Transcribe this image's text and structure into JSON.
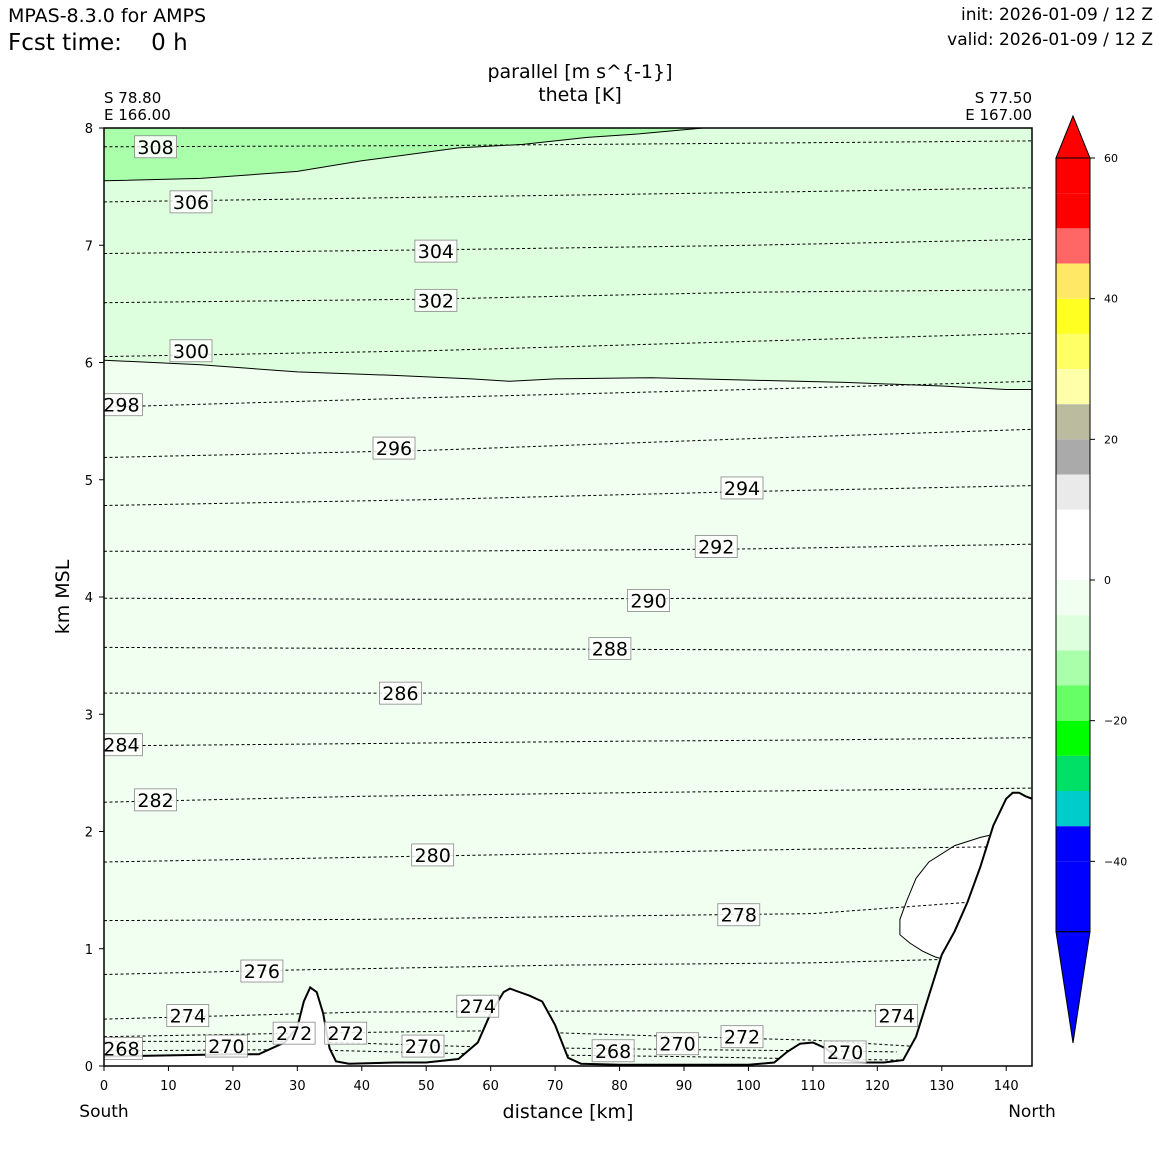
{
  "header": {
    "model": "MPAS-8.3.0 for AMPS",
    "fcst_time": "Fcst time:    0 h",
    "init": "init: 2026-01-09 / 12 Z",
    "valid": "valid: 2026-01-09 / 12 Z"
  },
  "chart_data": {
    "type": "contour",
    "title": "parallel [m s^{-1}]",
    "subtitle": "theta [K]",
    "xlabel": "distance [km]",
    "ylabel": "km MSL",
    "xlim": [
      0,
      144
    ],
    "ylim": [
      0,
      8
    ],
    "x_ticks": [
      0,
      10,
      20,
      30,
      40,
      50,
      60,
      70,
      80,
      90,
      100,
      110,
      120,
      130,
      140
    ],
    "y_ticks": [
      0,
      1,
      2,
      3,
      4,
      5,
      6,
      7,
      8
    ],
    "start": {
      "lat": "S 78.80",
      "lon": "E 166.00",
      "side": "South"
    },
    "end": {
      "lat": "S 77.50",
      "lon": "E 167.00",
      "side": "North"
    },
    "colorbar": {
      "levels": [
        -60,
        -55,
        -50,
        -45,
        -40,
        -35,
        -30,
        -25,
        -20,
        -15,
        -10,
        -5,
        0,
        5,
        10,
        15,
        20,
        25,
        30,
        35,
        40,
        45,
        50,
        55,
        60
      ],
      "tick_labels": [
        -40,
        -20,
        0,
        20,
        40,
        60
      ],
      "colors": [
        "#0000ff",
        "#0000ff",
        "#0000ff",
        "#00cccc",
        "#00e066",
        "#00ff00",
        "#66ff66",
        "#aaffaa",
        "#ddffdd",
        "#f0fff0",
        "#ffffff",
        "#ffffff",
        "#eaeaea",
        "#aaaaaa",
        "#bbbba0",
        "#ffffaa",
        "#ffff66",
        "#ffff22",
        "#ffe866",
        "#ff6666",
        "#ff0000",
        "#ff0000"
      ],
      "extend": "both"
    },
    "wind_regions": [
      {
        "range": "-15 to -20",
        "color": "#aaffaa",
        "boundary": [
          [
            0,
            7.55
          ],
          [
            15,
            7.57
          ],
          [
            30,
            7.63
          ],
          [
            40,
            7.72
          ],
          [
            55,
            7.83
          ],
          [
            65,
            7.86
          ],
          [
            75,
            7.92
          ],
          [
            83,
            7.95
          ],
          [
            93,
            8.0
          ]
        ]
      },
      {
        "range": "-10 to -15",
        "color": "#ddffdd",
        "boundary": [
          [
            0,
            6.02
          ],
          [
            15,
            5.98
          ],
          [
            30,
            5.92
          ],
          [
            45,
            5.89
          ],
          [
            57,
            5.86
          ],
          [
            63,
            5.84
          ],
          [
            70,
            5.86
          ],
          [
            85,
            5.87
          ],
          [
            100,
            5.85
          ],
          [
            115,
            5.83
          ],
          [
            130,
            5.8
          ],
          [
            140,
            5.77
          ],
          [
            144,
            5.77
          ]
        ]
      },
      {
        "range": "-5 to -10",
        "color": "#f0fff0"
      },
      {
        "range": "0 to -5",
        "color": "#ffffff",
        "location": "x 122-140 km, z 0.9-2.0 km"
      }
    ],
    "terrain": [
      [
        0,
        0.08
      ],
      [
        10,
        0.09
      ],
      [
        20,
        0.1
      ],
      [
        24,
        0.1
      ],
      [
        28,
        0.2
      ],
      [
        30,
        0.33
      ],
      [
        31,
        0.55
      ],
      [
        32,
        0.67
      ],
      [
        33,
        0.63
      ],
      [
        34,
        0.45
      ],
      [
        35,
        0.15
      ],
      [
        36,
        0.04
      ],
      [
        38,
        0.02
      ],
      [
        45,
        0.03
      ],
      [
        50,
        0.03
      ],
      [
        55,
        0.06
      ],
      [
        58,
        0.2
      ],
      [
        60,
        0.45
      ],
      [
        62,
        0.63
      ],
      [
        63,
        0.66
      ],
      [
        64,
        0.64
      ],
      [
        66,
        0.6
      ],
      [
        68,
        0.55
      ],
      [
        70,
        0.35
      ],
      [
        72,
        0.07
      ],
      [
        74,
        0.02
      ],
      [
        80,
        0.01
      ],
      [
        90,
        0.01
      ],
      [
        100,
        0.01
      ],
      [
        104,
        0.03
      ],
      [
        106,
        0.12
      ],
      [
        108,
        0.19
      ],
      [
        110,
        0.2
      ],
      [
        112,
        0.15
      ],
      [
        114,
        0.06
      ],
      [
        118,
        0.03
      ],
      [
        121,
        0.03
      ],
      [
        124,
        0.05
      ],
      [
        126,
        0.25
      ],
      [
        128,
        0.6
      ],
      [
        130,
        0.95
      ],
      [
        132,
        1.15
      ],
      [
        134,
        1.4
      ],
      [
        136,
        1.7
      ],
      [
        138,
        2.05
      ],
      [
        140,
        2.28
      ],
      [
        141,
        2.33
      ],
      [
        142,
        2.33
      ],
      [
        143,
        2.3
      ],
      [
        144,
        2.28
      ]
    ],
    "theta_contours": [
      {
        "level": 268,
        "points": [
          [
            0,
            0.13
          ],
          [
            30,
            0.14
          ],
          [
            60,
            0.1
          ],
          [
            90,
            0.08
          ],
          [
            110,
            0.06
          ],
          [
            124,
            0.05
          ]
        ]
      },
      {
        "level": 270,
        "points": [
          [
            0,
            0.21
          ],
          [
            30,
            0.21
          ],
          [
            60,
            0.16
          ],
          [
            90,
            0.14
          ],
          [
            110,
            0.13
          ],
          [
            123,
            0.12
          ]
        ]
      },
      {
        "level": 272,
        "points": [
          [
            0,
            0.25
          ],
          [
            30,
            0.28
          ],
          [
            60,
            0.3
          ],
          [
            90,
            0.25
          ],
          [
            110,
            0.22
          ],
          [
            125,
            0.17
          ]
        ]
      },
      {
        "level": 274,
        "points": [
          [
            0,
            0.4
          ],
          [
            40,
            0.46
          ],
          [
            80,
            0.47
          ],
          [
            110,
            0.47
          ],
          [
            125,
            0.47
          ]
        ]
      },
      {
        "level": 276,
        "points": [
          [
            0,
            0.78
          ],
          [
            30,
            0.82
          ],
          [
            70,
            0.86
          ],
          [
            110,
            0.88
          ],
          [
            131,
            0.91
          ]
        ]
      },
      {
        "level": 278,
        "points": [
          [
            0,
            1.24
          ],
          [
            40,
            1.25
          ],
          [
            80,
            1.28
          ],
          [
            110,
            1.3
          ],
          [
            135,
            1.4
          ]
        ]
      },
      {
        "level": 280,
        "points": [
          [
            0,
            1.74
          ],
          [
            40,
            1.78
          ],
          [
            80,
            1.82
          ],
          [
            110,
            1.85
          ],
          [
            140,
            1.87
          ]
        ]
      },
      {
        "level": 282,
        "points": [
          [
            0,
            2.25
          ],
          [
            40,
            2.3
          ],
          [
            80,
            2.33
          ],
          [
            110,
            2.35
          ],
          [
            144,
            2.37
          ]
        ]
      },
      {
        "level": 284,
        "points": [
          [
            0,
            2.73
          ],
          [
            40,
            2.75
          ],
          [
            80,
            2.77
          ],
          [
            110,
            2.78
          ],
          [
            144,
            2.8
          ]
        ]
      },
      {
        "level": 286,
        "points": [
          [
            0,
            3.18
          ],
          [
            50,
            3.18
          ],
          [
            100,
            3.18
          ],
          [
            144,
            3.18
          ]
        ]
      },
      {
        "level": 288,
        "points": [
          [
            0,
            3.57
          ],
          [
            50,
            3.56
          ],
          [
            100,
            3.55
          ],
          [
            144,
            3.55
          ]
        ]
      },
      {
        "level": 290,
        "points": [
          [
            0,
            3.99
          ],
          [
            50,
            3.98
          ],
          [
            100,
            3.99
          ],
          [
            144,
            3.99
          ]
        ]
      },
      {
        "level": 292,
        "points": [
          [
            0,
            4.39
          ],
          [
            50,
            4.39
          ],
          [
            100,
            4.41
          ],
          [
            144,
            4.45
          ]
        ]
      },
      {
        "level": 294,
        "points": [
          [
            0,
            4.78
          ],
          [
            50,
            4.83
          ],
          [
            100,
            4.9
          ],
          [
            144,
            4.95
          ]
        ]
      },
      {
        "level": 296,
        "points": [
          [
            0,
            5.19
          ],
          [
            50,
            5.25
          ],
          [
            100,
            5.35
          ],
          [
            144,
            5.43
          ]
        ]
      },
      {
        "level": 298,
        "points": [
          [
            0,
            5.62
          ],
          [
            50,
            5.7
          ],
          [
            100,
            5.77
          ],
          [
            144,
            5.84
          ]
        ]
      },
      {
        "level": 300,
        "points": [
          [
            0,
            6.05
          ],
          [
            50,
            6.1
          ],
          [
            100,
            6.18
          ],
          [
            144,
            6.25
          ]
        ]
      },
      {
        "level": 302,
        "points": [
          [
            0,
            6.51
          ],
          [
            50,
            6.54
          ],
          [
            100,
            6.6
          ],
          [
            144,
            6.62
          ]
        ]
      },
      {
        "level": 304,
        "points": [
          [
            0,
            6.93
          ],
          [
            50,
            6.96
          ],
          [
            100,
            7.0
          ],
          [
            144,
            7.05
          ]
        ]
      },
      {
        "level": 306,
        "points": [
          [
            0,
            7.37
          ],
          [
            50,
            7.41
          ],
          [
            100,
            7.45
          ],
          [
            144,
            7.49
          ]
        ]
      },
      {
        "level": 308,
        "points": [
          [
            0,
            7.84
          ],
          [
            50,
            7.85
          ],
          [
            100,
            7.87
          ],
          [
            144,
            7.89
          ]
        ]
      }
    ],
    "contour_labels": [
      {
        "text": "308",
        "x": 8,
        "y": 7.84
      },
      {
        "text": "306",
        "x": 13.5,
        "y": 7.37
      },
      {
        "text": "304",
        "x": 51.5,
        "y": 6.95
      },
      {
        "text": "302",
        "x": 51.5,
        "y": 6.53
      },
      {
        "text": "300",
        "x": 13.5,
        "y": 6.1
      },
      {
        "text": "298",
        "x": 2.7,
        "y": 5.64
      },
      {
        "text": "296",
        "x": 45,
        "y": 5.27
      },
      {
        "text": "294",
        "x": 99,
        "y": 4.93
      },
      {
        "text": "292",
        "x": 95,
        "y": 4.43
      },
      {
        "text": "290",
        "x": 84.5,
        "y": 3.97
      },
      {
        "text": "288",
        "x": 78.5,
        "y": 3.56
      },
      {
        "text": "286",
        "x": 46,
        "y": 3.18
      },
      {
        "text": "284",
        "x": 2.7,
        "y": 2.74
      },
      {
        "text": "282",
        "x": 8,
        "y": 2.27
      },
      {
        "text": "280",
        "x": 51,
        "y": 1.8
      },
      {
        "text": "278",
        "x": 98.5,
        "y": 1.29
      },
      {
        "text": "276",
        "x": 24.5,
        "y": 0.81
      },
      {
        "text": "274",
        "x": 13,
        "y": 0.43
      },
      {
        "text": "274",
        "x": 58,
        "y": 0.51
      },
      {
        "text": "274",
        "x": 123,
        "y": 0.43
      },
      {
        "text": "272",
        "x": 29.5,
        "y": 0.28
      },
      {
        "text": "272",
        "x": 37.5,
        "y": 0.28
      },
      {
        "text": "272",
        "x": 99,
        "y": 0.25
      },
      {
        "text": "270",
        "x": 19,
        "y": 0.17
      },
      {
        "text": "270",
        "x": 49.5,
        "y": 0.17
      },
      {
        "text": "270",
        "x": 89,
        "y": 0.19
      },
      {
        "text": "270",
        "x": 115,
        "y": 0.12
      },
      {
        "text": "268",
        "x": 2.7,
        "y": 0.15
      },
      {
        "text": "268",
        "x": 79,
        "y": 0.13
      }
    ]
  }
}
